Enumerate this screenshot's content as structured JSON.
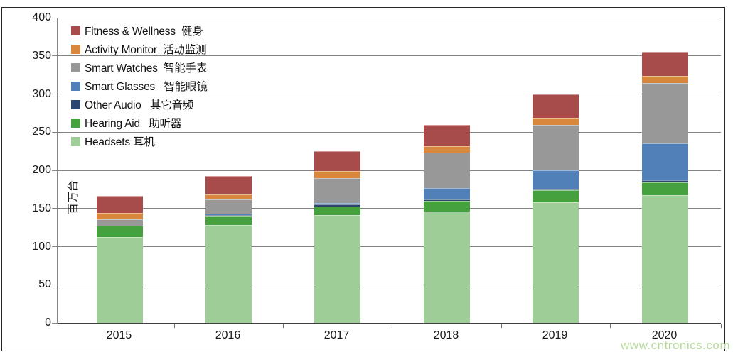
{
  "chart_data": {
    "type": "stacked-bar",
    "title": "",
    "categories": [
      "2015",
      "2016",
      "2017",
      "2018",
      "2019",
      "2020"
    ],
    "series": [
      {
        "name": "Headsets 耳机",
        "color": "#9FCD97",
        "values": [
          113,
          128,
          141,
          146,
          158,
          167
        ]
      },
      {
        "name": "Hearing Aid   助听器",
        "color": "#44A13E",
        "values": [
          14,
          12,
          12,
          14,
          16,
          17
        ]
      },
      {
        "name": "Other Audio   其它音频",
        "color": "#2A4570",
        "values": [
          0,
          1,
          2,
          2,
          2,
          3
        ]
      },
      {
        "name": "Smart Glasses   智能眼镜",
        "color": "#5180B8",
        "values": [
          0,
          2,
          2,
          15,
          24,
          48
        ]
      },
      {
        "name": "Smart Watches  智能手表",
        "color": "#989898",
        "values": [
          9,
          19,
          33,
          46,
          60,
          79
        ]
      },
      {
        "name": "Activity Monitor  活动监测",
        "color": "#D9873D",
        "values": [
          8,
          6,
          9,
          9,
          9,
          10
        ]
      },
      {
        "name": "Fitness & Wellness  健身",
        "color": "#A84B4B",
        "values": [
          23,
          25,
          26,
          28,
          31,
          31
        ]
      }
    ],
    "totals": [
      167,
      193,
      225,
      260,
      300,
      355
    ],
    "xlabel": "",
    "ylabel": "百万台",
    "ylim": [
      0,
      400
    ],
    "ytick_step": 50,
    "ytick_labels": [
      "0",
      "50",
      "100",
      "150",
      "200",
      "250",
      "300",
      "350",
      "400"
    ],
    "grid": true,
    "gridline_color": "#848484",
    "axis_line_color": "#404040",
    "legend_position": "top-left",
    "legend_order": "top-to-bottom reversed (Fitness first, Headsets last)"
  },
  "watermark": {
    "text": "www.cntronics.com",
    "color": "#B8DA9C"
  }
}
